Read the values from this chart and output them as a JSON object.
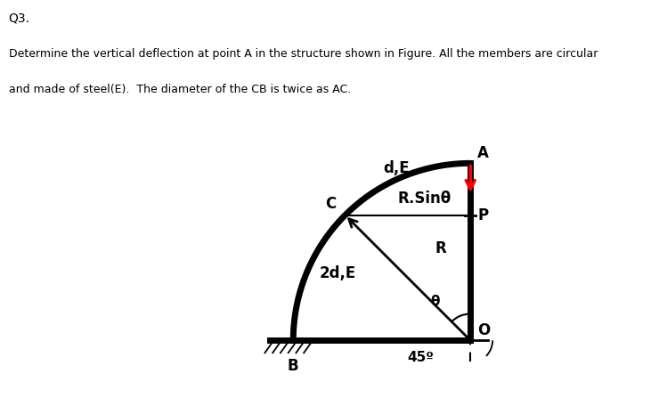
{
  "title_q": "Q3.",
  "description_line1": "Determine the vertical deflection at point A in the structure shown in Figure. All the members are circular",
  "description_line2": "and made of steel(E).  The diameter of the CB is twice as AC.",
  "bg_color": "#ffffff",
  "text_color": "#000000",
  "arc_color": "#000000",
  "line_color": "#000000",
  "arrow_color": "#ff0000",
  "label_A": "A",
  "label_B": "B",
  "label_C": "C",
  "label_O": "O",
  "label_P": "P",
  "label_dE": "d,E",
  "label_2dE": "2d,E",
  "label_R": "R",
  "label_Rsintheta": "R.Sinθ",
  "label_theta": "θ",
  "label_45": "45º"
}
